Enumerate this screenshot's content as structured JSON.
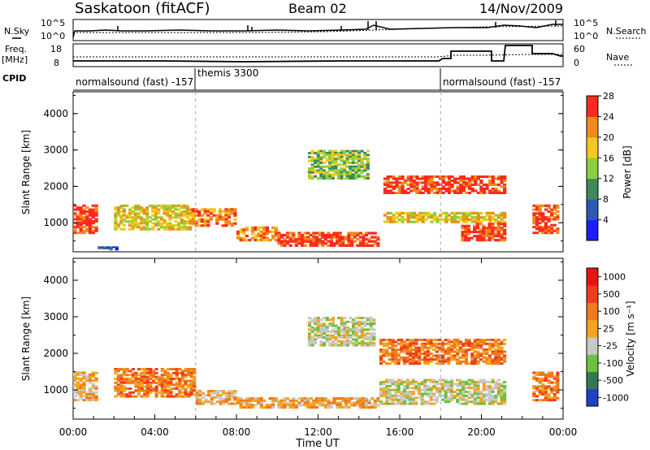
{
  "header": {
    "station": "Saskatoon (fitACF)",
    "beam": "Beam 02",
    "date": "14/Nov/2009"
  },
  "top_panels": {
    "nsky_label": "N.Sky",
    "nsky_ticks": [
      "10^5",
      "10^0"
    ],
    "nsearch_label": "N.Search",
    "nsearch_ticks": [
      "10^5",
      "10^0"
    ],
    "freq_label_line1": "Freq.",
    "freq_label_line2": "[MHz]",
    "freq_ticks": [
      "18",
      "8"
    ],
    "nave_label": "Nave",
    "nave_ticks": [
      "60",
      "0"
    ],
    "cpid_label": "CPID",
    "cpid_segments": [
      {
        "label": "normalsound (fast) -157",
        "start_hour": 0,
        "end_hour": 6
      },
      {
        "label": "themis 3300",
        "start_hour": 6,
        "end_hour": 18
      },
      {
        "label": "normalsound (fast) -157",
        "start_hour": 18,
        "end_hour": 24
      }
    ]
  },
  "chart_data": [
    {
      "type": "heatmap",
      "title": "",
      "quantity": "Power",
      "xlabel": "",
      "ylabel": "Slant Range [km]",
      "xlim": [
        0,
        24
      ],
      "ylim": [
        200,
        4600
      ],
      "yticks": [
        "1000",
        "2000",
        "3000",
        "4000"
      ],
      "colorbar_label": "Power [dB]",
      "colorbar_ticks": [
        "4",
        "8",
        "12",
        "16",
        "20",
        "24",
        "28"
      ],
      "colorbar_colors": [
        "#1c1cff",
        "#2a58b4",
        "#3e8a5c",
        "#8ccf3c",
        "#f4c81c",
        "#f08a1c",
        "#ff2a1c"
      ],
      "regions": [
        {
          "t0": 0.0,
          "t1": 1.2,
          "r0": 700,
          "r1": 1500,
          "level": 6
        },
        {
          "t0": 1.2,
          "t1": 2.2,
          "r0": 250,
          "r1": 350,
          "level": 1
        },
        {
          "t0": 2.0,
          "t1": 5.8,
          "r0": 800,
          "r1": 1500,
          "level": 4
        },
        {
          "t0": 5.8,
          "t1": 8.0,
          "r0": 900,
          "r1": 1400,
          "level": 5
        },
        {
          "t0": 8.0,
          "t1": 10.0,
          "r0": 500,
          "r1": 900,
          "level": 5
        },
        {
          "t0": 10.0,
          "t1": 15.0,
          "r0": 350,
          "r1": 750,
          "level": 6
        },
        {
          "t0": 11.5,
          "t1": 14.5,
          "r0": 2200,
          "r1": 3000,
          "level": 3
        },
        {
          "t0": 15.2,
          "t1": 21.2,
          "r0": 1800,
          "r1": 2300,
          "level": 6
        },
        {
          "t0": 15.2,
          "t1": 21.2,
          "r0": 1000,
          "r1": 1300,
          "level": 4
        },
        {
          "t0": 19.0,
          "t1": 21.2,
          "r0": 500,
          "r1": 1000,
          "level": 6
        },
        {
          "t0": 22.5,
          "t1": 23.8,
          "r0": 700,
          "r1": 1500,
          "level": 6
        }
      ]
    },
    {
      "type": "heatmap",
      "title": "",
      "quantity": "Velocity",
      "xlabel": "Time UT",
      "ylabel": "Slant Range [km]",
      "xlim": [
        0,
        24
      ],
      "ylim": [
        200,
        4600
      ],
      "xticks": [
        "00:00",
        "04:00",
        "08:00",
        "12:00",
        "16:00",
        "20:00",
        "00:00"
      ],
      "yticks": [
        "1000",
        "2000",
        "3000",
        "4000"
      ],
      "colorbar_label": "Velocity [m s⁻¹]",
      "colorbar_ticks": [
        "1000",
        "500",
        "100",
        "25",
        "-25",
        "-100",
        "-500",
        "-1000"
      ],
      "colorbar_colors": [
        "#2040c8",
        "#2f7a52",
        "#6cc23c",
        "#c8c8c8",
        "#f4a420",
        "#f07a1c",
        "#f03c1c",
        "#e81414"
      ],
      "regions": [
        {
          "t0": 0.0,
          "t1": 1.2,
          "r0": 700,
          "r1": 1500,
          "level": 4
        },
        {
          "t0": 2.0,
          "t1": 6.0,
          "r0": 800,
          "r1": 1600,
          "level": 5
        },
        {
          "t0": 6.0,
          "t1": 8.0,
          "r0": 600,
          "r1": 1000,
          "level": 4
        },
        {
          "t0": 8.0,
          "t1": 15.0,
          "r0": 500,
          "r1": 800,
          "level": 4
        },
        {
          "t0": 11.5,
          "t1": 14.8,
          "r0": 2200,
          "r1": 3000,
          "level": 3
        },
        {
          "t0": 15.0,
          "t1": 21.2,
          "r0": 1700,
          "r1": 2400,
          "level": 5
        },
        {
          "t0": 15.0,
          "t1": 21.2,
          "r0": 600,
          "r1": 1300,
          "level": 3
        },
        {
          "t0": 22.5,
          "t1": 23.8,
          "r0": 700,
          "r1": 1500,
          "level": 5
        }
      ]
    }
  ]
}
